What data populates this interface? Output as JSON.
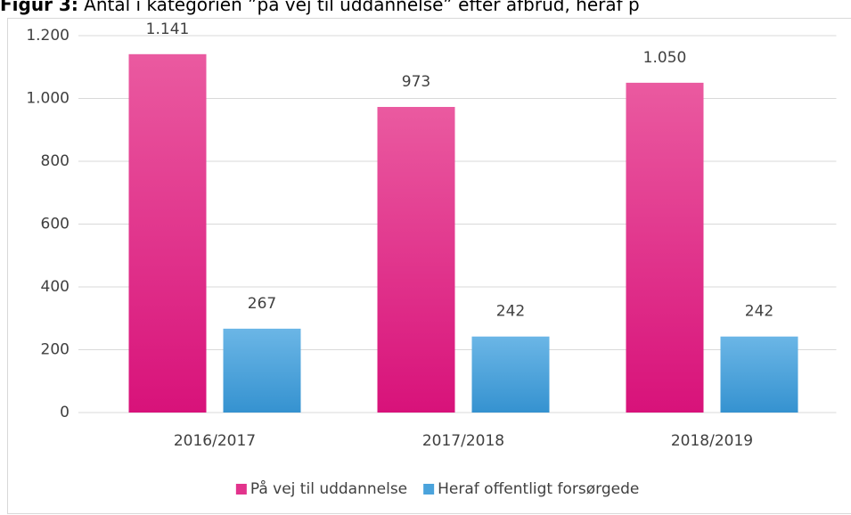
{
  "chart_data": {
    "type": "bar",
    "title_prefix": "Figur 3:",
    "title": "Antal i kategorien ”på vej til uddannelse” efter afbrud, heraf p",
    "categories": [
      "2016/2017",
      "2017/2018",
      "2018/2019"
    ],
    "series": [
      {
        "name": "På vej til uddannelse",
        "color": "#e2338c",
        "values": [
          1141,
          973,
          1050
        ],
        "value_labels": [
          "1.141",
          "973",
          "1.050"
        ]
      },
      {
        "name": "Heraf offentligt forsørgede",
        "color": "#4aa3dc",
        "values": [
          267,
          242,
          242
        ]
      }
    ],
    "ylim": [
      0,
      1200
    ],
    "yticks": [
      0,
      200,
      400,
      600,
      800,
      {
        "value": 1000,
        "label": "1.000"
      },
      {
        "value": 1200,
        "label": "1.200"
      }
    ],
    "grid": true,
    "legend": "bottom"
  }
}
